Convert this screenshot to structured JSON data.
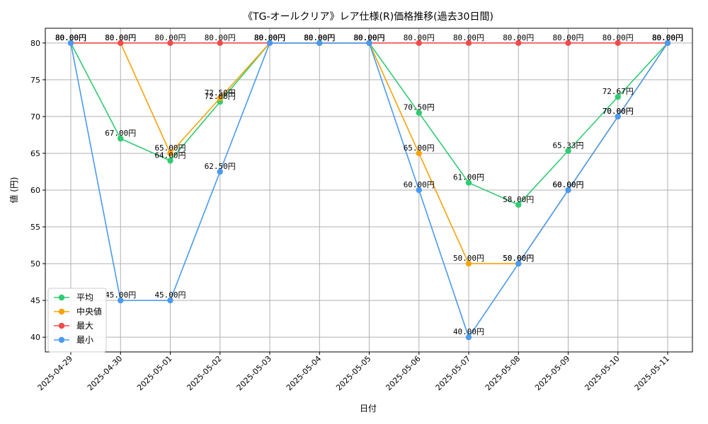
{
  "chart_data": {
    "type": "line",
    "title": "《TG-オールクリア》レア仕様(R)価格推移(過去30日間)",
    "xlabel": "日付",
    "ylabel": "値 (円)",
    "value_suffix": "円",
    "ylim": [
      38,
      82
    ],
    "yticks": [
      40,
      45,
      50,
      55,
      60,
      65,
      70,
      75,
      80
    ],
    "grid": true,
    "legend_position": "lower-left",
    "categories": [
      "2025-04-29",
      "2025-04-30",
      "2025-05-01",
      "2025-05-02",
      "2025-05-03",
      "2025-05-04",
      "2025-05-05",
      "2025-05-06",
      "2025-05-07",
      "2025-05-08",
      "2025-05-09",
      "2025-05-10",
      "2025-05-11"
    ],
    "series": [
      {
        "name": "平均",
        "color": "#2ecc71",
        "values": [
          80,
          67,
          64,
          72,
          80,
          80,
          80,
          70.5,
          61,
          58,
          65.33,
          72.67,
          80
        ]
      },
      {
        "name": "中央値",
        "color": "#f5a30a",
        "values": [
          80,
          80,
          65,
          72.5,
          80,
          80,
          80,
          65,
          50,
          50,
          60,
          70,
          80
        ]
      },
      {
        "name": "最大",
        "color": "#f04b4b",
        "values": [
          80,
          80,
          80,
          80,
          80,
          80,
          80,
          80,
          80,
          80,
          80,
          80,
          80
        ]
      },
      {
        "name": "最小",
        "color": "#4a9af0",
        "values": [
          80,
          45,
          45,
          62.5,
          80,
          80,
          80,
          60,
          40,
          50,
          60,
          70,
          80
        ]
      }
    ]
  }
}
